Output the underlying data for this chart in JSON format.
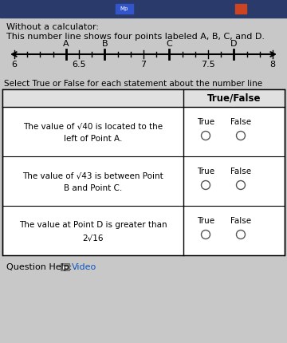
{
  "bg_color": "#c8c8c8",
  "top_bar_color": "#2a4a8a",
  "title_line1": "Without a calculator:",
  "title_line2": "This number line shows four points labeled A, B, C, and D.",
  "number_line": {
    "xmin": 6.0,
    "xmax": 8.0,
    "tick_step": 0.1,
    "labels": [
      6,
      6.5,
      7,
      7.5,
      8
    ],
    "points": {
      "A": 6.4,
      "B": 6.7,
      "C": 7.2,
      "D": 7.7
    }
  },
  "select_text": "Select True or False for each statement about the number line",
  "table_header": "True/False",
  "rows": [
    {
      "line1": "The value of √40 is located to the",
      "line2": "left of Point A."
    },
    {
      "line1": "The value of √43 is between Point",
      "line2": "B and Point C."
    },
    {
      "line1": "The value at Point D is greater than",
      "line2": "2√16"
    }
  ],
  "question_help_text": "Question Help:",
  "video_text": "Video",
  "text_color": "#000000",
  "white_bg": "#ffffff",
  "light_gray": "#e0e0e0"
}
